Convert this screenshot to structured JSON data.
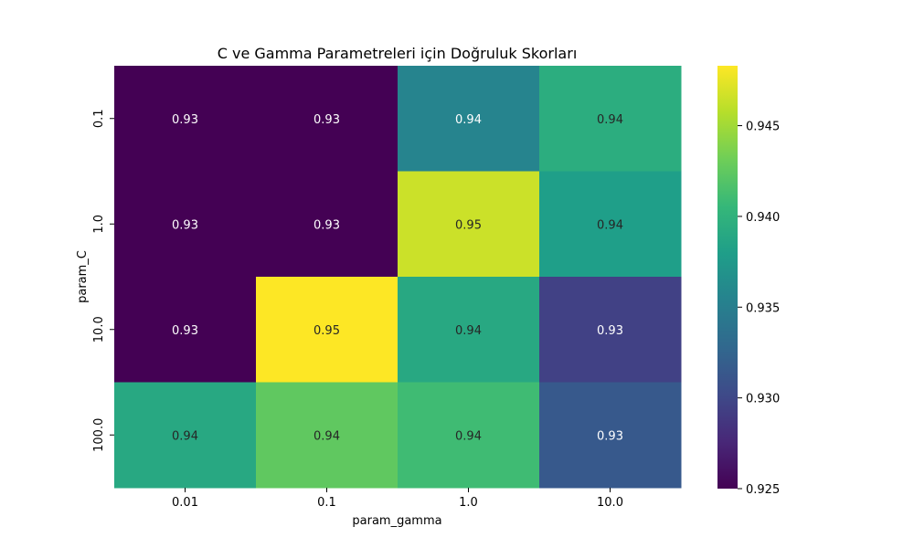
{
  "chart_data": {
    "type": "heatmap",
    "title": "C ve Gamma Parametreleri için Doğruluk Skorları",
    "xlabel": "param_gamma",
    "ylabel": "param_C",
    "x_categories": [
      "0.01",
      "0.1",
      "1.0",
      "10.0"
    ],
    "y_categories": [
      "0.1",
      "1.0",
      "10.0",
      "100.0"
    ],
    "values": [
      [
        0.925,
        0.925,
        0.9355,
        0.9395
      ],
      [
        0.925,
        0.925,
        0.9465,
        0.938
      ],
      [
        0.925,
        0.9483,
        0.939,
        0.9295
      ],
      [
        0.939,
        0.9425,
        0.941,
        0.9315
      ]
    ],
    "annotations": [
      [
        "0.93",
        "0.93",
        "0.94",
        "0.94"
      ],
      [
        "0.93",
        "0.93",
        "0.95",
        "0.94"
      ],
      [
        "0.93",
        "0.95",
        "0.94",
        "0.93"
      ],
      [
        "0.94",
        "0.94",
        "0.94",
        "0.93"
      ]
    ],
    "colormap": "viridis",
    "colorbar": {
      "range": [
        0.925,
        0.9483
      ],
      "ticks": [
        "0.925",
        "0.930",
        "0.935",
        "0.940",
        "0.945"
      ],
      "tick_values": [
        0.925,
        0.93,
        0.935,
        0.94,
        0.945
      ]
    },
    "annotation_colors": {
      "on_dark": "#ffffff",
      "on_light": "#262626"
    }
  }
}
